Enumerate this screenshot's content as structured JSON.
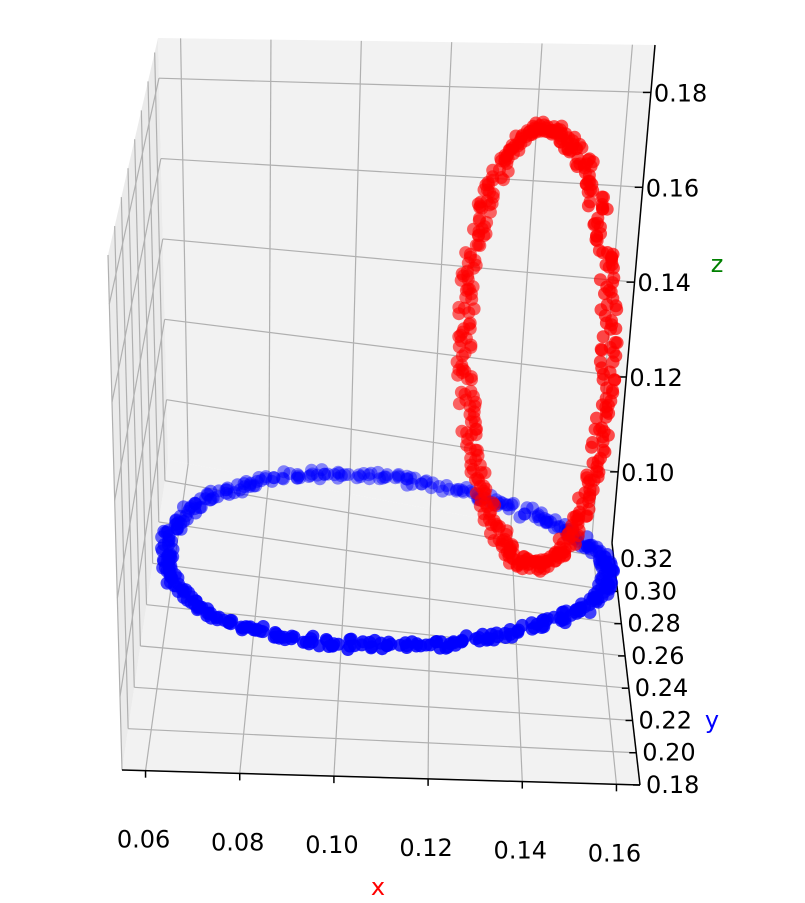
{
  "chart_data": {
    "type": "scatter",
    "projection": "3d",
    "axes": {
      "x": {
        "label": "x",
        "label_color": "#ff0000",
        "range": [
          0.055,
          0.165
        ],
        "ticks": [
          0.06,
          0.08,
          0.1,
          0.12,
          0.14,
          0.16
        ],
        "tick_labels": [
          "0.06",
          "0.08",
          "0.10",
          "0.12",
          "0.14",
          "0.16"
        ]
      },
      "y": {
        "label": "y",
        "label_color": "#0000ff",
        "range": [
          0.18,
          0.33
        ],
        "ticks": [
          0.18,
          0.2,
          0.22,
          0.24,
          0.26,
          0.28,
          0.3,
          0.32
        ],
        "tick_labels": [
          "0.18",
          "0.20",
          "0.22",
          "0.24",
          "0.26",
          "0.28",
          "0.30",
          "0.32"
        ]
      },
      "z": {
        "label": "z",
        "label_color": "#008000",
        "range": [
          0.085,
          0.19
        ],
        "ticks": [
          0.1,
          0.12,
          0.14,
          0.16,
          0.18
        ],
        "tick_labels": [
          "0.10",
          "0.12",
          "0.14",
          "0.16",
          "0.18"
        ]
      }
    },
    "grid": true,
    "series": [
      {
        "color": "#0000ff",
        "shape": "ring",
        "center": [
          0.11,
          0.255,
          0.1
        ],
        "radius": 0.05,
        "plane": "xy",
        "points": 450
      },
      {
        "color": "#ff0000",
        "shape": "ring",
        "center": [
          0.142,
          0.255,
          0.14
        ],
        "radius": 0.03,
        "plane": "xz",
        "tilt_deg": 18,
        "points": 450
      }
    ]
  }
}
